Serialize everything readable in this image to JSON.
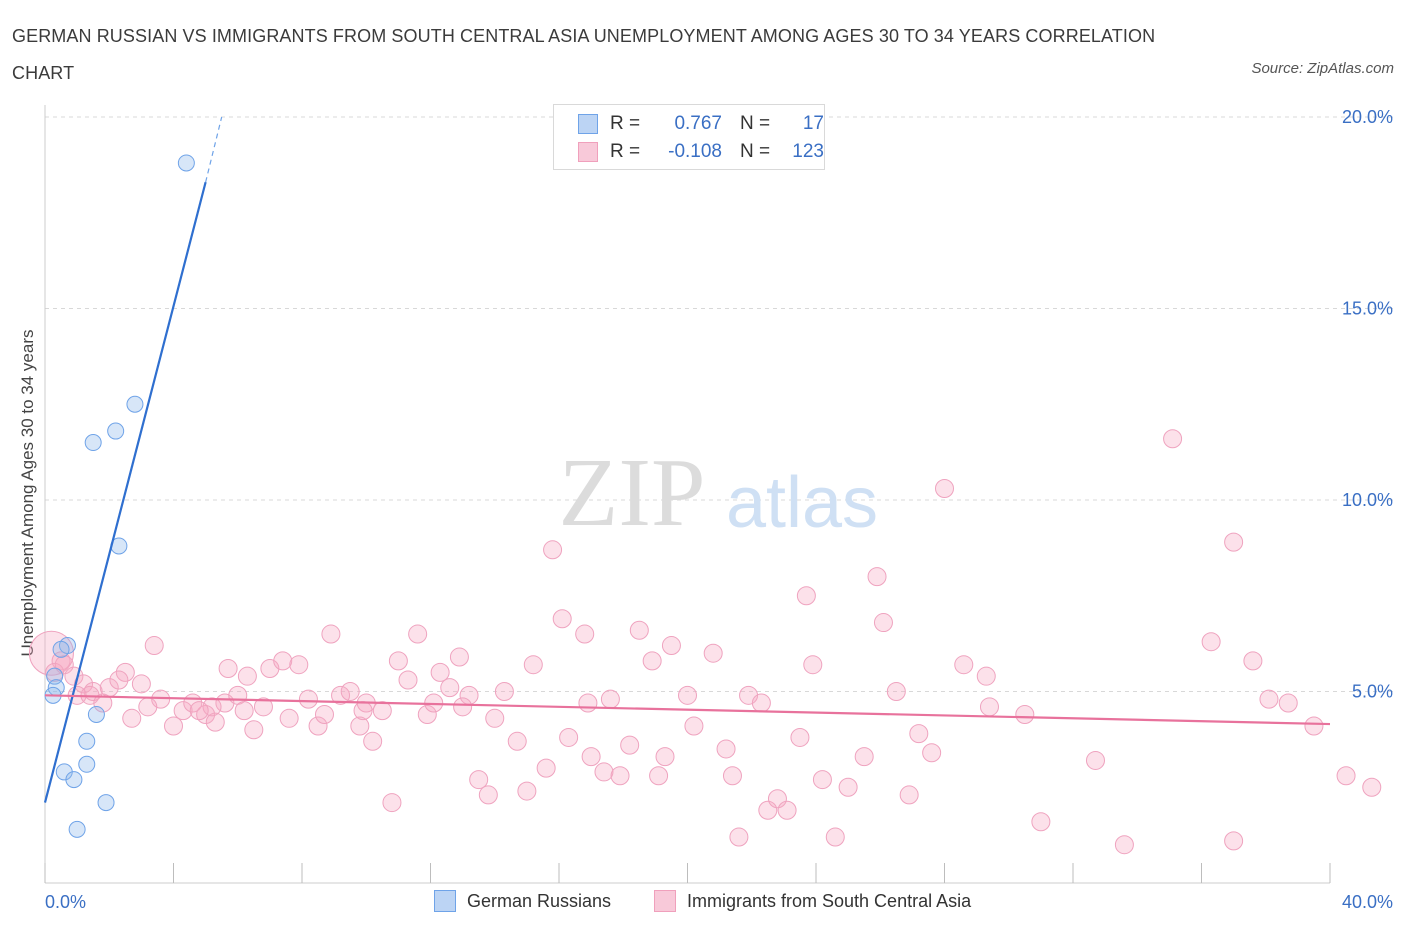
{
  "title": "GERMAN RUSSIAN VS IMMIGRANTS FROM SOUTH CENTRAL ASIA UNEMPLOYMENT AMONG AGES 30 TO 34 YEARS CORRELATION CHART",
  "source": "Source: ZipAtlas.com",
  "watermark": {
    "zip": "ZIP",
    "atlas": "atlas"
  },
  "legend": {
    "rows": [
      {
        "r_label": "R =",
        "r_value": "0.767",
        "n_label": "N =",
        "n_value": "17",
        "color": "#6fa3e8"
      },
      {
        "r_label": "R =",
        "r_value": "-0.108",
        "n_label": "N =",
        "n_value": "123",
        "color": "#f0a0bc"
      }
    ]
  },
  "bottom_legend": {
    "items": [
      {
        "label": "German Russians",
        "color": "#6fa3e8"
      },
      {
        "label": "Immigrants from South Central Asia",
        "color": "#f0a0bc"
      }
    ]
  },
  "chart_data": {
    "type": "scatter",
    "title": "GERMAN RUSSIAN VS IMMIGRANTS FROM SOUTH CENTRAL ASIA UNEMPLOYMENT AMONG AGES 30 TO 34 YEARS CORRELATION CHART",
    "xlabel": "",
    "ylabel": "Unemployment Among Ages 30 to 34 years",
    "xlim": [
      0,
      40
    ],
    "ylim": [
      0,
      20
    ],
    "x_tick_labels": [
      "0.0%",
      "40.0%"
    ],
    "y_tick_labels": [
      "5.0%",
      "10.0%",
      "15.0%",
      "20.0%"
    ],
    "y_ticks": [
      5,
      10,
      15,
      20
    ],
    "grid": true,
    "legend_position": "top-center",
    "series": [
      {
        "name": "German Russians",
        "color": "#6fa3e8",
        "trend": {
          "x": [
            0,
            5.0
          ],
          "y": [
            2.1,
            18.3
          ],
          "dashed_to": [
            5.5,
            20.0
          ]
        },
        "points": [
          [
            4.4,
            18.8
          ],
          [
            2.8,
            12.5
          ],
          [
            2.2,
            11.8
          ],
          [
            1.5,
            11.5
          ],
          [
            2.3,
            8.8
          ],
          [
            0.7,
            6.2
          ],
          [
            0.5,
            6.1
          ],
          [
            0.3,
            5.4
          ],
          [
            0.35,
            5.1
          ],
          [
            0.25,
            4.9
          ],
          [
            1.6,
            4.4
          ],
          [
            1.3,
            3.7
          ],
          [
            1.3,
            3.1
          ],
          [
            0.6,
            2.9
          ],
          [
            0.9,
            2.7
          ],
          [
            1.9,
            2.1
          ],
          [
            1.0,
            1.4
          ]
        ]
      },
      {
        "name": "Immigrants from South Central Asia",
        "color": "#f0a0bc",
        "trend": {
          "x": [
            0,
            40
          ],
          "y": [
            4.9,
            4.15
          ]
        },
        "points": [
          [
            0.2,
            6.0
          ],
          [
            0.5,
            5.8
          ],
          [
            0.3,
            5.5
          ],
          [
            0.6,
            5.7
          ],
          [
            0.9,
            5.4
          ],
          [
            1.2,
            5.2
          ],
          [
            1.5,
            5.0
          ],
          [
            1.0,
            4.9
          ],
          [
            2.0,
            5.1
          ],
          [
            2.5,
            5.5
          ],
          [
            2.3,
            5.3
          ],
          [
            3.0,
            5.2
          ],
          [
            3.4,
            6.2
          ],
          [
            3.6,
            4.8
          ],
          [
            3.2,
            4.6
          ],
          [
            2.7,
            4.3
          ],
          [
            4.0,
            4.1
          ],
          [
            4.3,
            4.5
          ],
          [
            4.6,
            4.7
          ],
          [
            5.0,
            4.4
          ],
          [
            5.3,
            4.2
          ],
          [
            5.6,
            4.7
          ],
          [
            5.7,
            5.6
          ],
          [
            6.0,
            4.9
          ],
          [
            6.3,
            5.4
          ],
          [
            6.5,
            4.0
          ],
          [
            6.8,
            4.6
          ],
          [
            7.0,
            5.6
          ],
          [
            7.4,
            5.8
          ],
          [
            7.6,
            4.3
          ],
          [
            7.9,
            5.7
          ],
          [
            8.2,
            4.8
          ],
          [
            8.5,
            4.1
          ],
          [
            8.7,
            4.4
          ],
          [
            8.9,
            6.5
          ],
          [
            9.2,
            4.9
          ],
          [
            9.5,
            5.0
          ],
          [
            9.8,
            4.1
          ],
          [
            10.0,
            4.7
          ],
          [
            10.2,
            3.7
          ],
          [
            10.5,
            4.5
          ],
          [
            10.8,
            2.1
          ],
          [
            11.0,
            5.8
          ],
          [
            11.3,
            5.3
          ],
          [
            11.6,
            6.5
          ],
          [
            11.9,
            4.4
          ],
          [
            12.1,
            4.7
          ],
          [
            12.3,
            5.5
          ],
          [
            12.6,
            5.1
          ],
          [
            12.9,
            5.9
          ],
          [
            13.2,
            4.9
          ],
          [
            13.5,
            2.7
          ],
          [
            13.8,
            2.3
          ],
          [
            14.0,
            4.3
          ],
          [
            14.3,
            5.0
          ],
          [
            14.7,
            3.7
          ],
          [
            15.0,
            2.4
          ],
          [
            15.2,
            5.7
          ],
          [
            15.6,
            3.0
          ],
          [
            15.8,
            8.7
          ],
          [
            16.1,
            6.9
          ],
          [
            16.3,
            3.8
          ],
          [
            16.8,
            6.5
          ],
          [
            17.0,
            3.3
          ],
          [
            17.4,
            2.9
          ],
          [
            17.6,
            4.8
          ],
          [
            17.9,
            2.8
          ],
          [
            18.2,
            3.6
          ],
          [
            18.5,
            6.6
          ],
          [
            18.9,
            5.8
          ],
          [
            19.1,
            2.8
          ],
          [
            19.3,
            3.3
          ],
          [
            19.5,
            6.2
          ],
          [
            20.0,
            4.9
          ],
          [
            20.2,
            4.1
          ],
          [
            20.8,
            6.0
          ],
          [
            21.2,
            3.5
          ],
          [
            21.4,
            2.8
          ],
          [
            21.6,
            1.2
          ],
          [
            21.9,
            4.9
          ],
          [
            22.3,
            4.7
          ],
          [
            22.5,
            1.9
          ],
          [
            22.8,
            2.2
          ],
          [
            23.1,
            1.9
          ],
          [
            23.5,
            3.8
          ],
          [
            23.7,
            7.5
          ],
          [
            23.9,
            5.7
          ],
          [
            24.2,
            2.7
          ],
          [
            24.6,
            1.2
          ],
          [
            25.0,
            2.5
          ],
          [
            25.5,
            3.3
          ],
          [
            25.9,
            8.0
          ],
          [
            26.1,
            6.8
          ],
          [
            26.5,
            5.0
          ],
          [
            26.9,
            2.3
          ],
          [
            27.2,
            3.9
          ],
          [
            27.6,
            3.4
          ],
          [
            28.0,
            10.3
          ],
          [
            28.6,
            5.7
          ],
          [
            29.4,
            4.6
          ],
          [
            29.3,
            5.4
          ],
          [
            30.5,
            4.4
          ],
          [
            31.0,
            1.6
          ],
          [
            32.7,
            3.2
          ],
          [
            33.6,
            1.0
          ],
          [
            35.1,
            11.6
          ],
          [
            36.3,
            6.3
          ],
          [
            37.0,
            1.1
          ],
          [
            37.0,
            8.9
          ],
          [
            37.6,
            5.8
          ],
          [
            38.1,
            4.8
          ],
          [
            38.7,
            4.7
          ],
          [
            39.5,
            4.1
          ],
          [
            40.5,
            2.8
          ],
          [
            41.3,
            2.5
          ],
          [
            5.2,
            4.6
          ],
          [
            6.2,
            4.5
          ],
          [
            9.9,
            4.5
          ],
          [
            13.0,
            4.6
          ],
          [
            16.9,
            4.7
          ],
          [
            1.4,
            4.9
          ],
          [
            1.8,
            4.7
          ],
          [
            4.8,
            4.5
          ]
        ]
      }
    ]
  }
}
